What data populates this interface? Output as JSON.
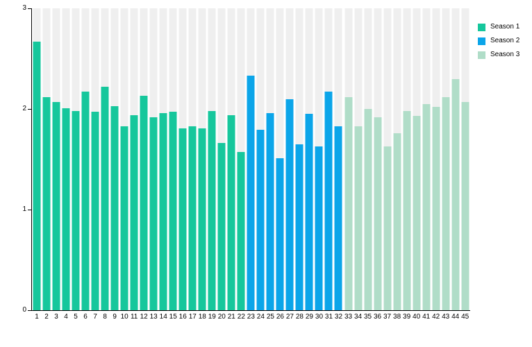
{
  "chart_data": {
    "type": "bar",
    "title": "",
    "xlabel": "",
    "ylabel": "",
    "ylim": [
      0,
      3
    ],
    "yticks": [
      "0",
      "1",
      "2",
      "3"
    ],
    "grid": false,
    "legend_position": "top-right",
    "background_track_color": "#efefef",
    "axis_color": "#000000",
    "categories": [
      1,
      2,
      3,
      4,
      5,
      6,
      7,
      8,
      9,
      10,
      11,
      12,
      13,
      14,
      15,
      16,
      17,
      18,
      19,
      20,
      21,
      22,
      23,
      24,
      25,
      26,
      27,
      28,
      29,
      30,
      31,
      32,
      33,
      34,
      35,
      36,
      37,
      38,
      39,
      40,
      41,
      42,
      43,
      44,
      45
    ],
    "series": [
      {
        "name": "Season 1",
        "color": "#16c79c",
        "start_category": 1,
        "values": [
          2.67,
          2.12,
          2.07,
          2.01,
          1.98,
          2.17,
          1.97,
          2.22,
          2.03,
          1.83,
          1.94,
          2.13,
          1.92,
          1.96,
          1.97,
          1.81,
          1.83,
          1.81,
          1.98,
          1.66,
          1.94,
          1.57
        ]
      },
      {
        "name": "Season 2",
        "color": "#0ba5e9",
        "start_category": 23,
        "values": [
          2.33,
          1.79,
          1.96,
          1.51,
          2.1,
          1.65,
          1.95,
          1.63,
          2.17,
          1.83
        ]
      },
      {
        "name": "Season 3",
        "color": "#b0ddc8",
        "start_category": 33,
        "values": [
          2.12,
          1.83,
          2.0,
          1.92,
          1.63,
          1.76,
          1.98,
          1.93,
          2.05,
          2.02,
          2.12,
          2.3,
          2.07
        ]
      }
    ]
  }
}
